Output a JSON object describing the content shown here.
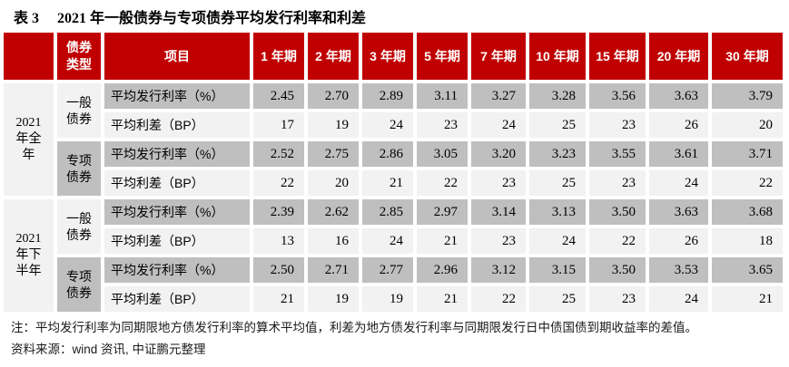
{
  "colors": {
    "header_red": "#C00000",
    "stripe_dark": "#BFBFBF",
    "stripe_light": "#F2F2F2"
  },
  "title": {
    "label": "表 3",
    "caption": "2021 年一般债券与专项债券平均发行利率和利差"
  },
  "table": {
    "header": {
      "corner": "",
      "bond_type": "债券类型",
      "item": "项目",
      "terms": [
        "1 年期",
        "2 年期",
        "3 年期",
        "5 年期",
        "7 年期",
        "10 年期",
        "15 年期",
        "20 年期",
        "30 年期"
      ]
    },
    "groups": [
      {
        "period": "2021 年全年",
        "bond_types": [
          {
            "name": "一般债券",
            "shade": "light",
            "rows": [
              {
                "item": "平均发行利率（%）",
                "shade": "dark",
                "values": [
                  "2.45",
                  "2.70",
                  "2.89",
                  "3.11",
                  "3.27",
                  "3.28",
                  "3.56",
                  "3.63",
                  "3.79"
                ]
              },
              {
                "item": "平均利差（BP）",
                "shade": "light",
                "values": [
                  "17",
                  "19",
                  "24",
                  "23",
                  "24",
                  "25",
                  "23",
                  "26",
                  "20"
                ]
              }
            ]
          },
          {
            "name": "专项债券",
            "shade": "dark",
            "rows": [
              {
                "item": "平均发行利率（%）",
                "shade": "dark",
                "values": [
                  "2.52",
                  "2.75",
                  "2.86",
                  "3.05",
                  "3.20",
                  "3.23",
                  "3.55",
                  "3.61",
                  "3.71"
                ]
              },
              {
                "item": "平均利差（BP）",
                "shade": "light",
                "values": [
                  "22",
                  "20",
                  "21",
                  "22",
                  "23",
                  "25",
                  "23",
                  "24",
                  "22"
                ]
              }
            ]
          }
        ]
      },
      {
        "period": "2021 年下半年",
        "bond_types": [
          {
            "name": "一般债券",
            "shade": "light",
            "rows": [
              {
                "item": "平均发行利率（%）",
                "shade": "dark",
                "values": [
                  "2.39",
                  "2.62",
                  "2.85",
                  "2.97",
                  "3.14",
                  "3.13",
                  "3.50",
                  "3.63",
                  "3.68"
                ]
              },
              {
                "item": "平均利差（BP）",
                "shade": "light",
                "values": [
                  "13",
                  "16",
                  "24",
                  "21",
                  "23",
                  "24",
                  "22",
                  "26",
                  "18"
                ]
              }
            ]
          },
          {
            "name": "专项债券",
            "shade": "dark",
            "rows": [
              {
                "item": "平均发行利率（%）",
                "shade": "dark",
                "values": [
                  "2.50",
                  "2.71",
                  "2.77",
                  "2.96",
                  "3.12",
                  "3.15",
                  "3.50",
                  "3.53",
                  "3.65"
                ]
              },
              {
                "item": "平均利差（BP）",
                "shade": "light",
                "values": [
                  "21",
                  "19",
                  "19",
                  "21",
                  "22",
                  "25",
                  "23",
                  "24",
                  "21"
                ]
              }
            ]
          }
        ]
      }
    ]
  },
  "footnotes": {
    "note": "注：平均发行利率为同期限地方债发行利率的算术平均值，利差为地方债发行利率与同期限发行日中债国债到期收益率的差值。",
    "source": "资料来源：wind 资讯, 中证鹏元整理"
  }
}
